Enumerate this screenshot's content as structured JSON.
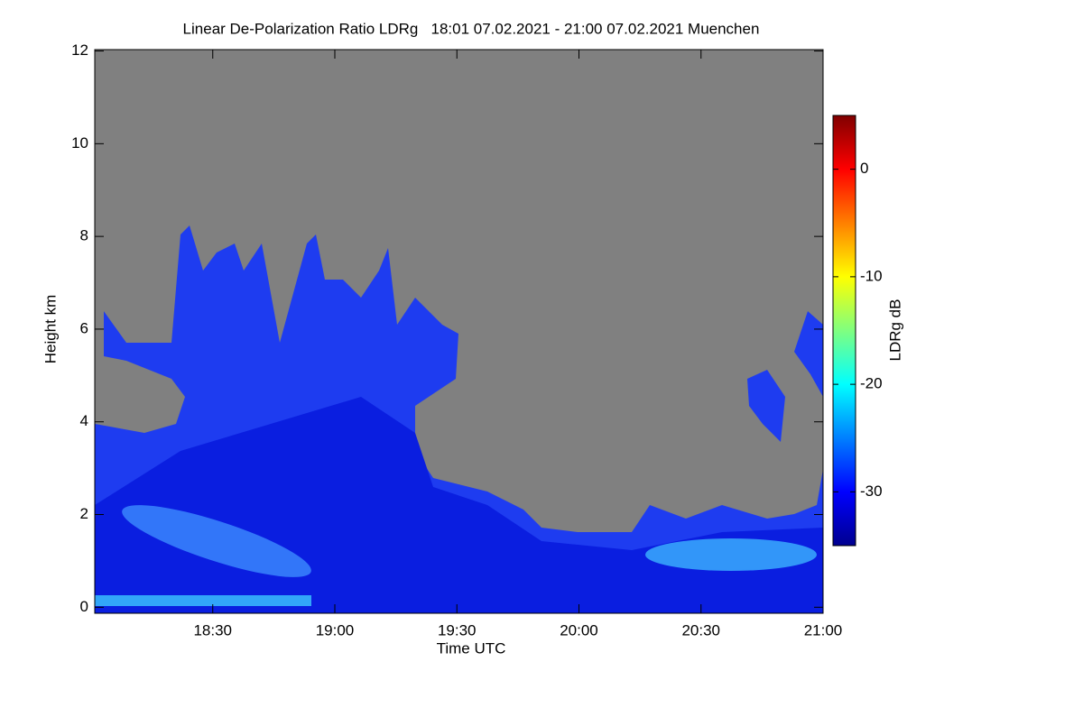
{
  "chart_data": {
    "type": "heatmap",
    "title": "Linear De-Polarization Ratio LDRg   18:01 07.02.2021 - 21:00 07.02.2021 Muenchen",
    "xlabel": "Time UTC",
    "ylabel": "Height km",
    "xlim": [
      1081,
      1260
    ],
    "xticks": [
      {
        "value": 1110,
        "label": "18:30"
      },
      {
        "value": 1140,
        "label": "19:00"
      },
      {
        "value": 1170,
        "label": "19:30"
      },
      {
        "value": 1200,
        "label": "20:00"
      },
      {
        "value": 1230,
        "label": "20:30"
      },
      {
        "value": 1260,
        "label": "21:00"
      }
    ],
    "ylim": [
      -0.13,
      12.03
    ],
    "yticks": [
      0,
      2,
      4,
      6,
      8,
      10,
      12
    ],
    "colorbar_label": "LDRg dB",
    "clim": [
      -35,
      5
    ],
    "cticks": [
      0,
      -10,
      -20,
      -30
    ],
    "colormap": "jet"
  }
}
